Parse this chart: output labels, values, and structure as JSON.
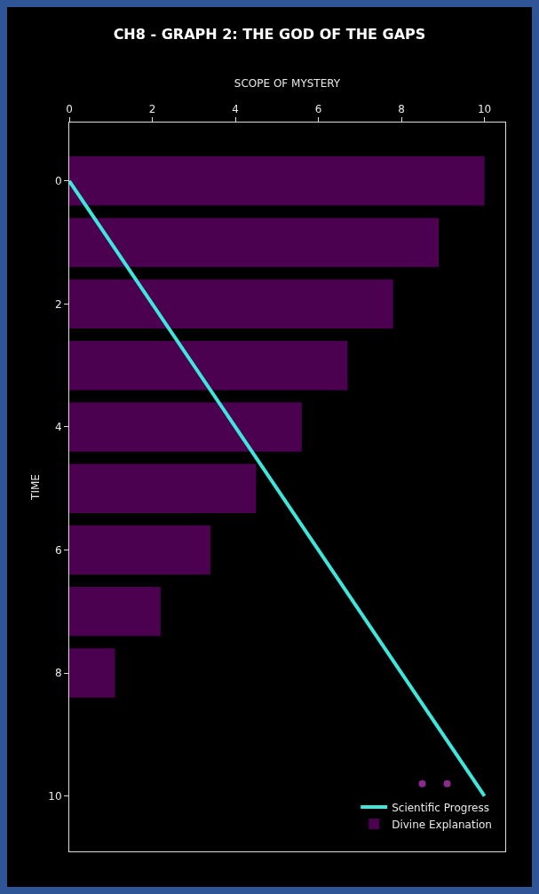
{
  "chart_data": {
    "type": "bar",
    "orientation": "horizontal",
    "title": "CH8 - GRAPH 2: THE GOD OF THE GAPS",
    "xlabel": "SCOPE OF MYSTERY",
    "ylabel": "TIME",
    "x": [
      0,
      1,
      2,
      3,
      4,
      5,
      6,
      7,
      8
    ],
    "series": [
      {
        "name": "Divine Explanation",
        "color": "#4b0050",
        "values": [
          10,
          8.9,
          7.8,
          6.7,
          5.6,
          4.5,
          3.4,
          2.2,
          1.1
        ]
      },
      {
        "name": "Scientific Progress",
        "type": "line",
        "color": "#3ee6dc",
        "x": [
          0,
          10
        ],
        "values": [
          0,
          10
        ]
      },
      {
        "type": "scatter",
        "color": "#8c2a8c",
        "marker": "circle",
        "x": [
          9.8,
          9.8
        ],
        "values": [
          8.5,
          9.1
        ]
      }
    ],
    "xlim": [
      0,
      10.5
    ],
    "xticks": [
      0,
      2,
      4,
      6,
      8,
      10
    ],
    "ylim": [
      10.9,
      -0.95
    ],
    "yticks": [
      0,
      2,
      4,
      6,
      8,
      10
    ],
    "grid": false,
    "legend": "bottom right"
  }
}
